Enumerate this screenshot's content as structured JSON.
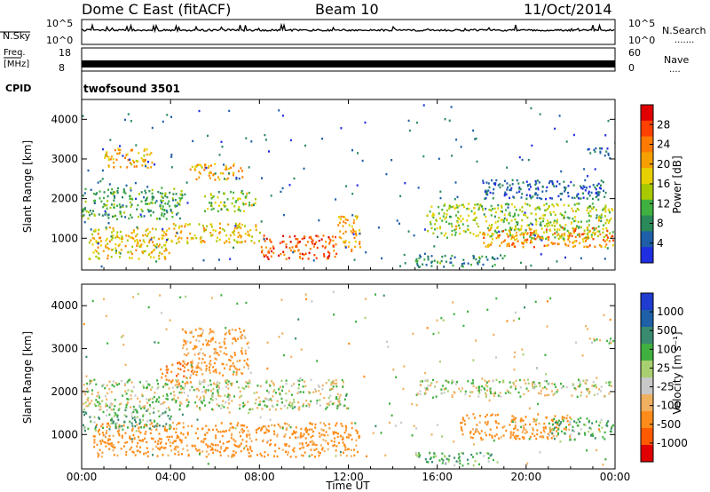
{
  "header": {
    "station": "Dome C East (fitACF)",
    "beam": "Beam 10",
    "date": "11/Oct/2014"
  },
  "sky_panel": {
    "label": "N.Sky",
    "tick_top": "10^5",
    "tick_bottom": "10^0",
    "right_tick_top": "10^5",
    "right_tick_bottom": "10^0",
    "right_label": "N.Search",
    "right_marker": "......."
  },
  "freq_panel": {
    "label_line1": "Freq.",
    "label_line2": "[MHz]",
    "tick_top": "18",
    "tick_bottom": "8",
    "right_tick_top": "60",
    "right_tick_bottom": "0",
    "right_label": "Nave",
    "right_marker": "...."
  },
  "cpid": {
    "label": "CPID",
    "value": "twofsound 3501"
  },
  "x_axis": {
    "title": "Time UT",
    "ticks": [
      "00:00",
      "04:00",
      "08:00",
      "12:00",
      "16:00",
      "20:00",
      "00:00"
    ]
  },
  "power_colorbar": {
    "title": "Power [dB]",
    "ticks": [
      "28",
      "24",
      "20",
      "16",
      "12",
      "8",
      "4"
    ],
    "colors": [
      "#e00000",
      "#ff4000",
      "#ff7a00",
      "#f5a000",
      "#e8d000",
      "#a8c800",
      "#40b040",
      "#2a8a5a",
      "#1e5fa8",
      "#1e2ee0"
    ]
  },
  "velocity_colorbar": {
    "title": "Velocity [m s⁻¹]",
    "ticks": [
      "1000",
      "500",
      "100",
      "25",
      "-25",
      "-100",
      "-500",
      "-1000"
    ],
    "colors": [
      "#1e3cd0",
      "#1e5fa8",
      "#3a8a70",
      "#40b040",
      "#a8d070",
      "#c8c8c8",
      "#f0b060",
      "#ff8c1a",
      "#ff5a00",
      "#e00000"
    ]
  },
  "chart_data": [
    {
      "type": "heatmap",
      "title": "",
      "xlabel": "",
      "ylabel": "Slant Range [km]",
      "y_ticks": [
        "1000",
        "2000",
        "3000",
        "4000"
      ],
      "x_range": [
        "00:00",
        "24:00"
      ],
      "y_range_km": [
        200,
        4500
      ],
      "value_label": "Power [dB]",
      "blobs": [
        {
          "t0": 0.0,
          "t1": 4.5,
          "r0": 1500,
          "r1": 2300,
          "power_db": 12
        },
        {
          "t0": 0.3,
          "t1": 4.0,
          "r0": 500,
          "r1": 1300,
          "power_db": 20
        },
        {
          "t0": 1.0,
          "t1": 3.2,
          "r0": 2800,
          "r1": 3300,
          "power_db": 22
        },
        {
          "t0": 4.8,
          "t1": 7.2,
          "r0": 2500,
          "r1": 2900,
          "power_db": 22
        },
        {
          "t0": 5.5,
          "t1": 7.8,
          "r0": 1700,
          "r1": 2200,
          "power_db": 16
        },
        {
          "t0": 8.0,
          "t1": 11.5,
          "r0": 500,
          "r1": 1100,
          "power_db": 28
        },
        {
          "t0": 4.0,
          "t1": 8.0,
          "r0": 900,
          "r1": 1400,
          "power_db": 20
        },
        {
          "t0": 11.5,
          "t1": 12.5,
          "r0": 700,
          "r1": 1600,
          "power_db": 22
        },
        {
          "t0": 15.5,
          "t1": 23.9,
          "r0": 1000,
          "r1": 1900,
          "power_db": 16
        },
        {
          "t0": 18.0,
          "t1": 23.9,
          "r0": 800,
          "r1": 1300,
          "power_db": 24
        },
        {
          "t0": 15.0,
          "t1": 19.0,
          "r0": 300,
          "r1": 600,
          "power_db": 10
        },
        {
          "t0": 18.0,
          "t1": 23.5,
          "r0": 2000,
          "r1": 2500,
          "power_db": 6
        },
        {
          "t0": 22.5,
          "t1": 23.9,
          "r0": 3100,
          "r1": 3300,
          "power_db": 6
        }
      ]
    },
    {
      "type": "heatmap",
      "title": "",
      "xlabel": "Time UT",
      "ylabel": "Slant Range [km]",
      "y_ticks": [
        "1000",
        "2000",
        "3000",
        "4000"
      ],
      "x_range": [
        "00:00",
        "24:00"
      ],
      "y_range_km": [
        200,
        4500
      ],
      "value_label": "Velocity [m s⁻¹]",
      "blobs": [
        {
          "t0": 0.0,
          "t1": 12.0,
          "r0": 1600,
          "r1": 2300,
          "velocity": 0
        },
        {
          "t0": 0.5,
          "t1": 12.5,
          "r0": 500,
          "r1": 1300,
          "velocity": -200
        },
        {
          "t0": 0.0,
          "t1": 4.0,
          "r0": 1100,
          "r1": 1600,
          "velocity": 100
        },
        {
          "t0": 4.5,
          "t1": 7.5,
          "r0": 2400,
          "r1": 3500,
          "velocity": -150
        },
        {
          "t0": 3.5,
          "t1": 5.0,
          "r0": 2200,
          "r1": 2700,
          "velocity": -300
        },
        {
          "t0": 15.0,
          "t1": 23.9,
          "r0": 1900,
          "r1": 2300,
          "velocity": 0
        },
        {
          "t0": 17.0,
          "t1": 22.0,
          "r0": 900,
          "r1": 1500,
          "velocity": -200
        },
        {
          "t0": 21.0,
          "t1": 23.9,
          "r0": 900,
          "r1": 1400,
          "velocity": 100
        },
        {
          "t0": 15.0,
          "t1": 18.5,
          "r0": 300,
          "r1": 600,
          "velocity": 100
        },
        {
          "t0": 22.8,
          "t1": 23.9,
          "r0": 3100,
          "r1": 3300,
          "velocity": 0
        }
      ]
    }
  ]
}
